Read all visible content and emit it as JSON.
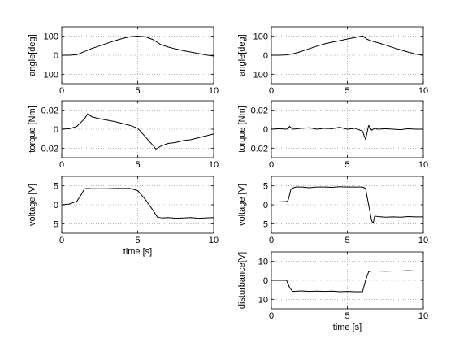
{
  "chart_data": [
    {
      "type": "line",
      "panel": "left-1",
      "xlabel": "",
      "ylabel": "angle[deg]",
      "xlim": [
        0,
        10
      ],
      "ylim": [
        -100,
        100
      ],
      "xticks": [
        "0",
        "5",
        "10"
      ],
      "yticks": [
        "100",
        "0",
        "100"
      ],
      "series": [
        {
          "x": [
            0,
            0.5,
            1.0,
            1.5,
            2.0,
            2.5,
            3.0,
            3.5,
            4.0,
            4.5,
            5.0,
            5.5,
            6.0,
            6.5,
            7.0,
            7.5,
            8.0,
            8.5,
            9.0,
            9.5,
            10.0
          ],
          "y": [
            0,
            0,
            2,
            13,
            24,
            33,
            42,
            51,
            59,
            65,
            67,
            65,
            55,
            38,
            29,
            22,
            16,
            11,
            6,
            1,
            -3
          ],
          "color": "#000000"
        }
      ]
    },
    {
      "type": "line",
      "panel": "right-1",
      "xlabel": "",
      "ylabel": "angle[deg]",
      "xlim": [
        0,
        10
      ],
      "ylim": [
        -100,
        100
      ],
      "xticks": [
        "0",
        "5",
        "10"
      ],
      "yticks": [
        "100",
        "0",
        "100"
      ],
      "series": [
        {
          "x": [
            0,
            0.5,
            1.0,
            1.5,
            2.0,
            2.5,
            3.0,
            3.5,
            4.0,
            4.5,
            5.0,
            5.5,
            6.0,
            6.3,
            6.6,
            7.0,
            7.5,
            8.0,
            8.5,
            9.0,
            9.5,
            10.0
          ],
          "y": [
            0,
            0,
            1,
            6,
            14,
            23,
            32,
            40,
            46,
            51,
            57,
            62,
            68,
            56,
            50,
            44,
            36,
            27,
            19,
            11,
            4,
            0
          ],
          "color": "#000000"
        }
      ]
    },
    {
      "type": "line",
      "panel": "left-2",
      "xlabel": "",
      "ylabel": "torque [Nm]",
      "xlim": [
        0,
        10
      ],
      "ylim": [
        -0.03,
        0.03
      ],
      "xticks": [
        "0",
        "5",
        "10"
      ],
      "yticks": [
        "0.02",
        "0",
        "0.02"
      ],
      "series": [
        {
          "x": [
            0,
            0.5,
            1.0,
            1.5,
            1.7,
            2.0,
            2.5,
            3.0,
            3.5,
            4.0,
            4.5,
            5.0,
            5.5,
            6.0,
            6.2,
            6.5,
            7.0,
            7.5,
            8.0,
            8.5,
            9.0,
            9.5,
            10.0
          ],
          "y": [
            0.0,
            0.0005,
            0.003,
            0.011,
            0.016,
            0.013,
            0.011,
            0.0095,
            0.008,
            0.006,
            0.004,
            0.001,
            -0.008,
            -0.017,
            -0.021,
            -0.018,
            -0.015,
            -0.014,
            -0.012,
            -0.011,
            -0.009,
            -0.007,
            -0.005
          ],
          "color": "#000000"
        }
      ]
    },
    {
      "type": "line",
      "panel": "right-2",
      "xlabel": "",
      "ylabel": "torque [Nm]",
      "xlim": [
        0,
        10
      ],
      "ylim": [
        -0.03,
        0.03
      ],
      "xticks": [
        "0",
        "5",
        "10"
      ],
      "yticks": [
        "0.02",
        "0",
        "0.02"
      ],
      "series": [
        {
          "x": [
            0,
            0.5,
            1.0,
            1.2,
            1.4,
            2.0,
            2.5,
            3.0,
            3.5,
            4.0,
            4.5,
            5.0,
            5.5,
            6.0,
            6.2,
            6.4,
            6.6,
            6.8,
            7.0,
            7.5,
            8.0,
            8.5,
            9.0,
            9.5,
            10.0
          ],
          "y": [
            0.0,
            0.0005,
            0.0,
            0.003,
            0.0,
            0.001,
            0.0015,
            0.0,
            0.001,
            0.0005,
            0.002,
            0.0,
            0.001,
            -0.002,
            -0.011,
            0.004,
            -0.001,
            0.001,
            0.0,
            0.0005,
            0.0,
            -0.0005,
            0.0005,
            0.0,
            0.0
          ],
          "color": "#000000"
        }
      ]
    },
    {
      "type": "line",
      "panel": "left-3",
      "xlabel": "time [s]",
      "ylabel": "voltage [V]",
      "xlim": [
        0,
        10
      ],
      "ylim": [
        -8,
        8
      ],
      "xticks": [
        "0",
        "5",
        "10"
      ],
      "yticks": [
        "5",
        "0",
        "5"
      ],
      "series": [
        {
          "x": [
            0,
            0.5,
            1.0,
            1.3,
            1.5,
            1.7,
            2.0,
            2.5,
            3.0,
            3.5,
            4.0,
            4.5,
            5.0,
            5.5,
            6.0,
            6.3,
            6.6,
            7.0,
            7.5,
            8.0,
            8.5,
            9.0,
            9.5,
            10.0
          ],
          "y": [
            0,
            0.2,
            1.0,
            3.0,
            4.5,
            4.6,
            4.5,
            4.5,
            4.5,
            4.6,
            4.6,
            4.6,
            4.0,
            1.5,
            -1.5,
            -3.5,
            -3.7,
            -3.6,
            -3.8,
            -3.7,
            -3.6,
            -3.8,
            -3.7,
            -3.6
          ],
          "color": "#000000"
        }
      ]
    },
    {
      "type": "line",
      "panel": "right-3",
      "xlabel": "",
      "ylabel": "voltage [V]",
      "xlim": [
        0,
        10
      ],
      "ylim": [
        -8,
        8
      ],
      "xticks": [
        "0",
        "5",
        "10"
      ],
      "yticks": [
        "5",
        "0",
        "5"
      ],
      "series": [
        {
          "x": [
            0,
            0.5,
            1.0,
            1.1,
            1.3,
            1.6,
            2.0,
            2.5,
            3.0,
            3.5,
            4.0,
            4.5,
            5.0,
            5.5,
            6.0,
            6.2,
            6.4,
            6.6,
            6.7,
            6.8,
            7.0,
            7.5,
            8.0,
            8.5,
            9.0,
            9.5,
            10.0
          ],
          "y": [
            0.8,
            0.8,
            0.9,
            1.2,
            4.5,
            5.0,
            5.0,
            4.8,
            5.0,
            5.0,
            4.9,
            5.1,
            5.0,
            5.0,
            5.0,
            4.6,
            0.0,
            -4.5,
            -5.2,
            -3.2,
            -3.3,
            -3.5,
            -3.4,
            -3.5,
            -3.3,
            -3.4,
            -3.4
          ],
          "color": "#000000"
        }
      ]
    },
    {
      "type": "line",
      "panel": "right-4",
      "xlabel": "time [s]",
      "ylabel": "disturbance[V]",
      "xlim": [
        0,
        10
      ],
      "ylim": [
        -10,
        10
      ],
      "xticks": [
        "0",
        "5",
        "10"
      ],
      "yticks": [
        "10",
        "0",
        "10"
      ],
      "series": [
        {
          "x": [
            0,
            0.5,
            1.0,
            1.2,
            1.4,
            2.0,
            2.5,
            3.0,
            3.5,
            4.0,
            4.5,
            5.0,
            5.5,
            6.0,
            6.2,
            6.4,
            6.6,
            7.0,
            7.5,
            8.0,
            8.5,
            9.0,
            9.5,
            10.0
          ],
          "y": [
            0,
            0,
            0,
            -2.5,
            -3.9,
            -3.7,
            -3.9,
            -3.8,
            -3.9,
            -3.8,
            -4.0,
            -3.9,
            -4.0,
            -4.0,
            0.0,
            3.0,
            3.3,
            3.3,
            3.2,
            3.3,
            3.3,
            3.4,
            3.3,
            3.3
          ],
          "color": "#000000"
        }
      ]
    }
  ]
}
